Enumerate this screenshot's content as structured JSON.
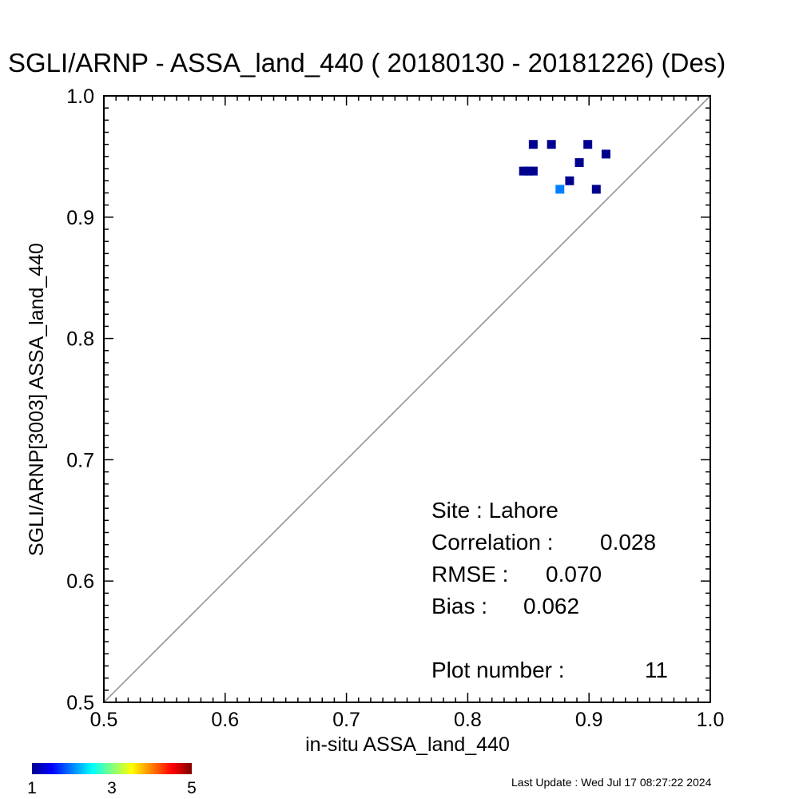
{
  "chart_data": {
    "type": "scatter",
    "title": "SGLI/ARNP - ASSA_land_440 ( 20180130 - 20181226) (Des)",
    "xlabel": "in-situ ASSA_land_440",
    "ylabel": "SGLI/ARNP[3003]    ASSA_land_440",
    "xlim": [
      0.5,
      1.0
    ],
    "ylim": [
      0.5,
      1.0
    ],
    "x_ticks": [
      "0.5",
      "0.6",
      "0.7",
      "0.8",
      "0.9",
      "1.0"
    ],
    "y_ticks": [
      "0.5",
      "0.6",
      "0.7",
      "0.8",
      "0.9",
      "1.0"
    ],
    "x_tick_values": [
      0.5,
      0.6,
      0.7,
      0.8,
      0.9,
      1.0
    ],
    "y_tick_values": [
      0.5,
      0.6,
      0.7,
      0.8,
      0.9,
      1.0
    ],
    "reference_line": "1:1",
    "grid": false,
    "points": [
      {
        "x": 0.846,
        "y": 0.938,
        "count": 1
      },
      {
        "x": 0.85,
        "y": 0.938,
        "count": 1
      },
      {
        "x": 0.854,
        "y": 0.938,
        "count": 1
      },
      {
        "x": 0.854,
        "y": 0.96,
        "count": 1
      },
      {
        "x": 0.869,
        "y": 0.96,
        "count": 1
      },
      {
        "x": 0.876,
        "y": 0.923,
        "count": 2
      },
      {
        "x": 0.884,
        "y": 0.93,
        "count": 1
      },
      {
        "x": 0.892,
        "y": 0.945,
        "count": 1
      },
      {
        "x": 0.899,
        "y": 0.96,
        "count": 1
      },
      {
        "x": 0.906,
        "y": 0.923,
        "count": 1
      },
      {
        "x": 0.914,
        "y": 0.952,
        "count": 1
      }
    ],
    "colorbar": {
      "min": 1,
      "max": 5,
      "tick_labels": [
        "1",
        "3",
        "5"
      ],
      "colormap": "jet"
    },
    "stats": {
      "site": "Site : Lahore",
      "correlation_label": "Correlation :",
      "correlation_value": "0.028",
      "rmse_label": "RMSE :",
      "rmse_value": "0.070",
      "bias_label": "Bias :",
      "bias_value": "0.062",
      "plot_number_label": "Plot number :",
      "plot_number_value": "11"
    }
  },
  "last_update": "Last Update : Wed Jul 17 08:27:22 2024",
  "colors": {
    "one_to_one_line": "#8c8c8c",
    "count_1": "#00008f",
    "count_2": "#0080ff",
    "axes": "#000000"
  }
}
